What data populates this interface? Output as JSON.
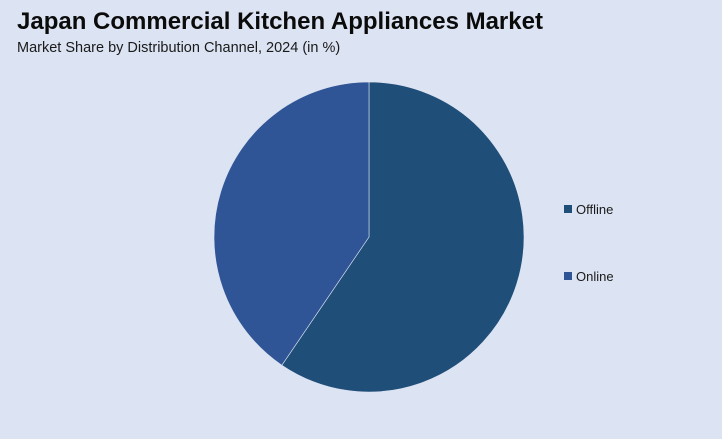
{
  "header": {
    "title": "Japan Commercial Kitchen Appliances Market",
    "subtitle": "Market Share by Distribution Channel, 2024 (in %)"
  },
  "colors": {
    "background": "#dce3f2",
    "offline": "#1f4e79",
    "online": "#2f5597"
  },
  "chart_data": {
    "type": "pie",
    "title": "Japan Commercial Kitchen Appliances Market",
    "subtitle": "Market Share by Distribution Channel, 2024 (in %)",
    "categories": [
      "Offline",
      "Online"
    ],
    "values": [
      59.5,
      40.5
    ],
    "legend_position": "right"
  }
}
